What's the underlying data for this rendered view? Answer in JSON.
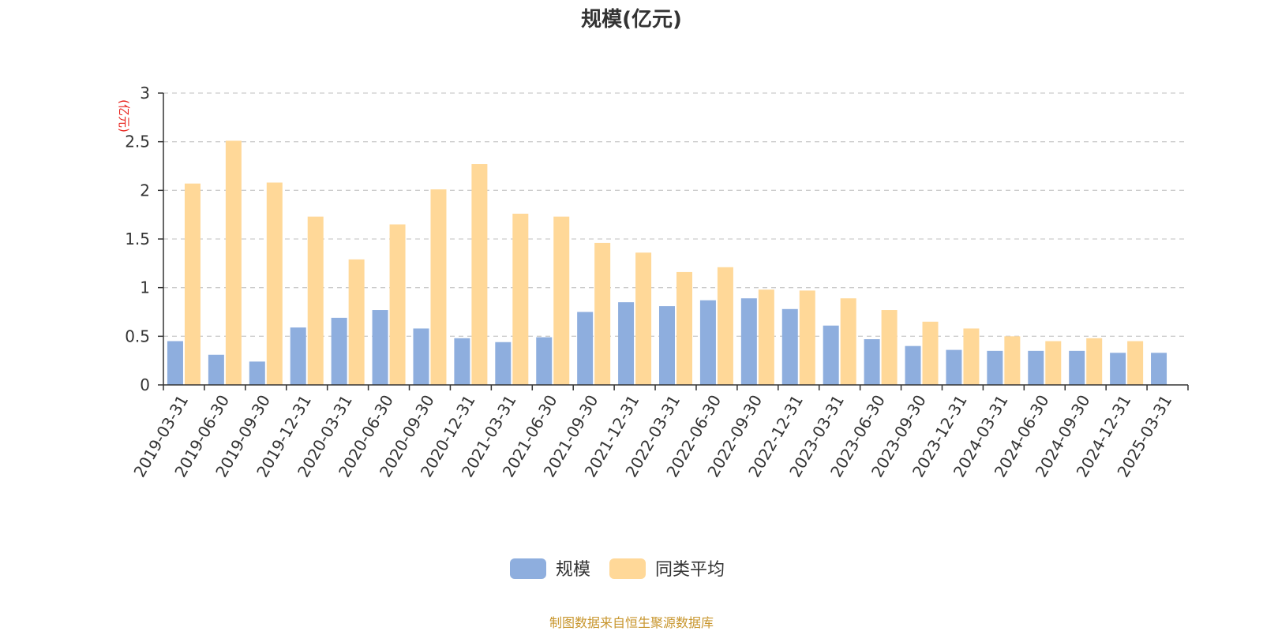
{
  "chart_data": {
    "type": "bar",
    "title": "规模(亿元)",
    "ylabel": "(亿元)",
    "xlabel": "",
    "ylim": [
      0,
      3
    ],
    "yticks": [
      "0",
      "0.5",
      "1",
      "1.5",
      "2",
      "2.5",
      "3"
    ],
    "grid": true,
    "legend_position": "bottom-center",
    "categories": [
      "2019-03-31",
      "2019-06-30",
      "2019-09-30",
      "2019-12-31",
      "2020-03-31",
      "2020-06-30",
      "2020-09-30",
      "2020-12-31",
      "2021-03-31",
      "2021-06-30",
      "2021-09-30",
      "2021-12-31",
      "2022-03-31",
      "2022-06-30",
      "2022-09-30",
      "2022-12-31",
      "2023-03-31",
      "2023-06-30",
      "2023-09-30",
      "2023-12-31",
      "2024-03-31",
      "2024-06-30",
      "2024-09-30",
      "2024-12-31",
      "2025-03-31"
    ],
    "series": [
      {
        "name": "规模",
        "color": "#8eaede",
        "values": [
          0.45,
          0.31,
          0.24,
          0.59,
          0.69,
          0.77,
          0.58,
          0.48,
          0.44,
          0.49,
          0.75,
          0.85,
          0.81,
          0.87,
          0.89,
          0.78,
          0.61,
          0.47,
          0.4,
          0.36,
          0.35,
          0.35,
          0.35,
          0.33,
          0.33
        ]
      },
      {
        "name": "同类平均",
        "color": "#ffd898",
        "values": [
          2.07,
          2.51,
          2.08,
          1.73,
          1.29,
          1.65,
          2.01,
          2.27,
          1.76,
          1.73,
          1.46,
          1.36,
          1.16,
          1.21,
          0.98,
          0.97,
          0.89,
          0.77,
          0.65,
          0.58,
          0.5,
          0.45,
          0.48,
          0.45,
          null
        ]
      }
    ]
  },
  "source_text": "制图数据来自恒生聚源数据库",
  "colors": {
    "axis": "#333333",
    "grid": "#cccccc",
    "unit_label": "#e8231d",
    "source": "#c8962e"
  }
}
